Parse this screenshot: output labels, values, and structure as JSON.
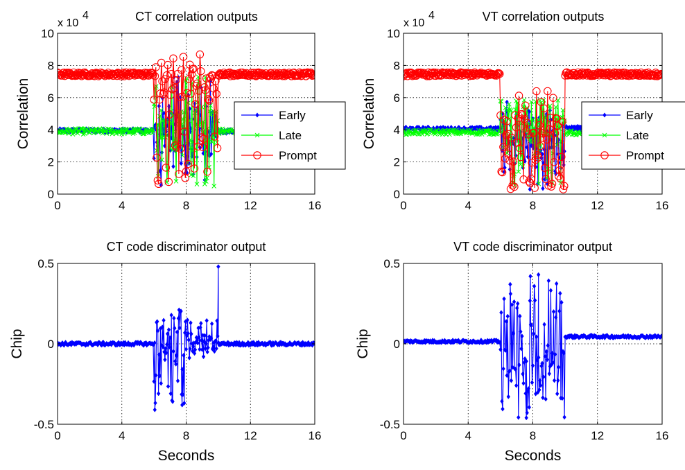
{
  "chart_data": [
    {
      "id": "ct_corr",
      "type": "line",
      "title": "CT correlation outputs",
      "ylabel": "Correlation",
      "xlabel": "",
      "y_exponent_label": "x 10",
      "y_exponent_power": "4",
      "xlim": [
        0,
        16
      ],
      "ylim": [
        0,
        10
      ],
      "xticks": [
        "0",
        "4",
        "8",
        "12",
        "16"
      ],
      "yticks": [
        "0",
        "2",
        "4",
        "6",
        "8",
        "10"
      ],
      "grid": true,
      "legend_position": "right",
      "series": [
        {
          "name": "Early",
          "color": "#0000ff",
          "marker": "diamond",
          "segments": [
            {
              "x0": 0,
              "x1": 6,
              "level": 3.95,
              "jitter": 0.12,
              "n": 120
            },
            {
              "x0": 6,
              "x1": 10,
              "level": 3.8,
              "jitter": 1.6,
              "n": 90,
              "low": 0.5,
              "high": 7.6
            },
            {
              "x0": 10,
              "x1": 16,
              "level": 3.9,
              "jitter": 0.12,
              "n": 120
            }
          ]
        },
        {
          "name": "Late",
          "color": "#00ff00",
          "marker": "x",
          "segments": [
            {
              "x0": 0,
              "x1": 6,
              "level": 3.9,
              "jitter": 0.18,
              "n": 120
            },
            {
              "x0": 6,
              "x1": 10,
              "level": 4.2,
              "jitter": 1.5,
              "n": 90,
              "low": 0.3,
              "high": 7.5
            },
            {
              "x0": 10,
              "x1": 16,
              "level": 3.9,
              "jitter": 0.18,
              "n": 120
            }
          ]
        },
        {
          "name": "Prompt",
          "color": "#ff0000",
          "marker": "circle",
          "segments": [
            {
              "x0": 0,
              "x1": 6,
              "level": 7.45,
              "jitter": 0.12,
              "n": 120
            },
            {
              "x0": 6,
              "x1": 10,
              "level": 7.2,
              "jitter": 1.5,
              "n": 70,
              "low": 0.5,
              "high": 8.7
            },
            {
              "x0": 10,
              "x1": 16,
              "level": 7.45,
              "jitter": 0.12,
              "n": 120
            }
          ]
        }
      ]
    },
    {
      "id": "vt_corr",
      "type": "line",
      "title": "VT correlation outputs",
      "ylabel": "Correlation",
      "xlabel": "",
      "y_exponent_label": "x 10",
      "y_exponent_power": "4",
      "xlim": [
        0,
        16
      ],
      "ylim": [
        0,
        10
      ],
      "xticks": [
        "0",
        "4",
        "8",
        "12",
        "16"
      ],
      "yticks": [
        "0",
        "2",
        "4",
        "6",
        "8",
        "10"
      ],
      "grid": true,
      "legend_position": "right",
      "series": [
        {
          "name": "Early",
          "color": "#0000ff",
          "marker": "diamond",
          "segments": [
            {
              "x0": 0,
              "x1": 6,
              "level": 4.05,
              "jitter": 0.12,
              "n": 120
            },
            {
              "x0": 6,
              "x1": 10,
              "level": 3.2,
              "jitter": 2.0,
              "n": 90,
              "low": 0.2,
              "high": 5.8
            },
            {
              "x0": 10,
              "x1": 16,
              "level": 4.1,
              "jitter": 0.12,
              "n": 120
            }
          ]
        },
        {
          "name": "Late",
          "color": "#00ff00",
          "marker": "x",
          "segments": [
            {
              "x0": 0,
              "x1": 6,
              "level": 3.85,
              "jitter": 0.15,
              "n": 120
            },
            {
              "x0": 6,
              "x1": 10,
              "level": 4.3,
              "jitter": 1.6,
              "n": 90,
              "low": 0.5,
              "high": 6.0
            },
            {
              "x0": 10,
              "x1": 16,
              "level": 3.8,
              "jitter": 0.15,
              "n": 120
            }
          ]
        },
        {
          "name": "Prompt",
          "color": "#ff0000",
          "marker": "circle",
          "segments": [
            {
              "x0": 0,
              "x1": 6,
              "level": 7.45,
              "jitter": 0.12,
              "n": 120
            },
            {
              "x0": 6,
              "x1": 10,
              "level": 2.5,
              "jitter": 2.5,
              "n": 70,
              "low": 0.3,
              "high": 7.0
            },
            {
              "x0": 10,
              "x1": 16,
              "level": 7.45,
              "jitter": 0.12,
              "n": 120
            }
          ]
        }
      ]
    },
    {
      "id": "ct_disc",
      "type": "line",
      "title": "CT code discriminator output",
      "ylabel": "Chip",
      "xlabel": "Seconds",
      "xlim": [
        0,
        16
      ],
      "ylim": [
        -0.5,
        0.5
      ],
      "xticks": [
        "0",
        "4",
        "8",
        "12",
        "16"
      ],
      "yticks": [
        "-0.5",
        "0",
        "0.5"
      ],
      "grid": true,
      "series": [
        {
          "name": "",
          "color": "#0000ff",
          "marker": "diamond",
          "segments": [
            {
              "x0": 0,
              "x1": 6,
              "level": 0.0,
              "jitter": 0.01,
              "n": 120
            },
            {
              "x0": 6,
              "x1": 8,
              "level": 0.0,
              "jitter": 0.16,
              "n": 50,
              "low": -0.42,
              "high": 0.22
            },
            {
              "x0": 8,
              "x1": 10,
              "level": 0.0,
              "jitter": 0.06,
              "n": 50,
              "low": -0.1,
              "high": 0.15
            },
            {
              "x0": 10,
              "x1": 16,
              "level": 0.0,
              "jitter": 0.01,
              "n": 120
            }
          ],
          "peaks": [
            {
              "x": 10.0,
              "y": 0.48
            },
            {
              "x": 6.05,
              "y": -0.41
            },
            {
              "x": 7.75,
              "y": -0.38
            }
          ]
        }
      ]
    },
    {
      "id": "vt_disc",
      "type": "line",
      "title": "VT code discriminator output",
      "ylabel": "Chip",
      "xlabel": "Seconds",
      "xlim": [
        0,
        16
      ],
      "ylim": [
        -0.5,
        0.5
      ],
      "xticks": [
        "0",
        "4",
        "8",
        "12",
        "16"
      ],
      "yticks": [
        "-0.5",
        "0",
        "0.5"
      ],
      "grid": true,
      "series": [
        {
          "name": "",
          "color": "#0000ff",
          "marker": "diamond",
          "segments": [
            {
              "x0": 0,
              "x1": 6,
              "level": 0.015,
              "jitter": 0.008,
              "n": 120
            },
            {
              "x0": 6,
              "x1": 10,
              "level": -0.2,
              "jitter": 0.17,
              "n": 90,
              "low": -0.46,
              "high": 0.43
            },
            {
              "x0": 10,
              "x1": 16,
              "level": 0.045,
              "jitter": 0.008,
              "n": 120
            }
          ],
          "peaks": [
            {
              "x": 7.85,
              "y": 0.42
            },
            {
              "x": 8.35,
              "y": 0.43
            },
            {
              "x": 6.6,
              "y": 0.37
            },
            {
              "x": 7.6,
              "y": -0.46
            }
          ]
        }
      ]
    }
  ]
}
